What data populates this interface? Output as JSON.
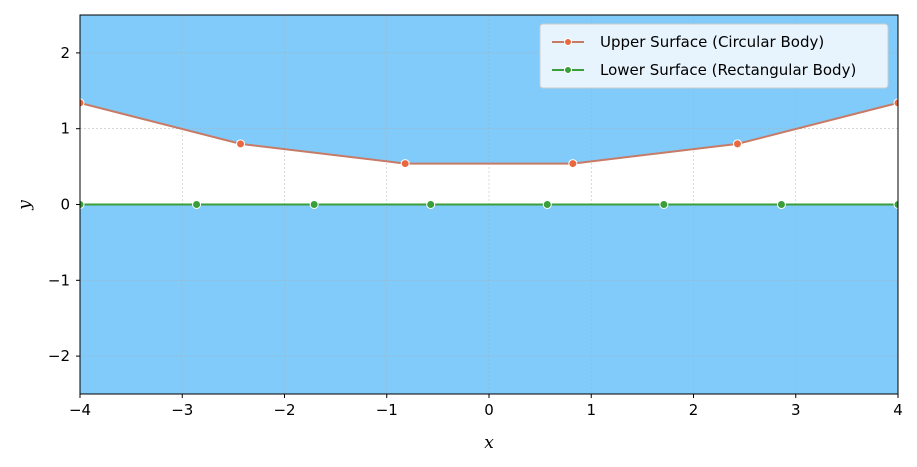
{
  "chart_data": {
    "type": "line",
    "title": "",
    "xlabel": "x",
    "ylabel": "y",
    "xlim": [
      -4,
      4
    ],
    "ylim": [
      -2.5,
      2.5
    ],
    "xticks": [
      -4,
      -3,
      -2,
      -1,
      0,
      1,
      2,
      3,
      4
    ],
    "xtick_labels": [
      "−4",
      "−3",
      "−2",
      "−1",
      "0",
      "1",
      "2",
      "3",
      "4"
    ],
    "yticks": [
      -2,
      -1,
      0,
      1,
      2
    ],
    "ytick_labels": [
      "−2",
      "−1",
      "0",
      "1",
      "2"
    ],
    "grid": true,
    "legend_position": "top-right",
    "background_fill_color": "#80cbfa",
    "gap_fill_color": "#ffffff",
    "series": [
      {
        "name": "Upper Surface (Circular Body)",
        "line_color": "#c77b66",
        "marker_color": "#e8693f",
        "x": [
          -4.0,
          -2.43,
          -0.82,
          0.82,
          2.43,
          4.0
        ],
        "y": [
          1.34,
          0.8,
          0.54,
          0.54,
          0.8,
          1.34
        ]
      },
      {
        "name": "Lower Surface (Rectangular Body)",
        "line_color": "#3a9e3a",
        "marker_color": "#3a9e3a",
        "x": [
          -4.0,
          -2.86,
          -1.71,
          -0.57,
          0.57,
          1.71,
          2.86,
          4.0
        ],
        "y": [
          0,
          0,
          0,
          0,
          0,
          0,
          0,
          0
        ]
      }
    ]
  }
}
